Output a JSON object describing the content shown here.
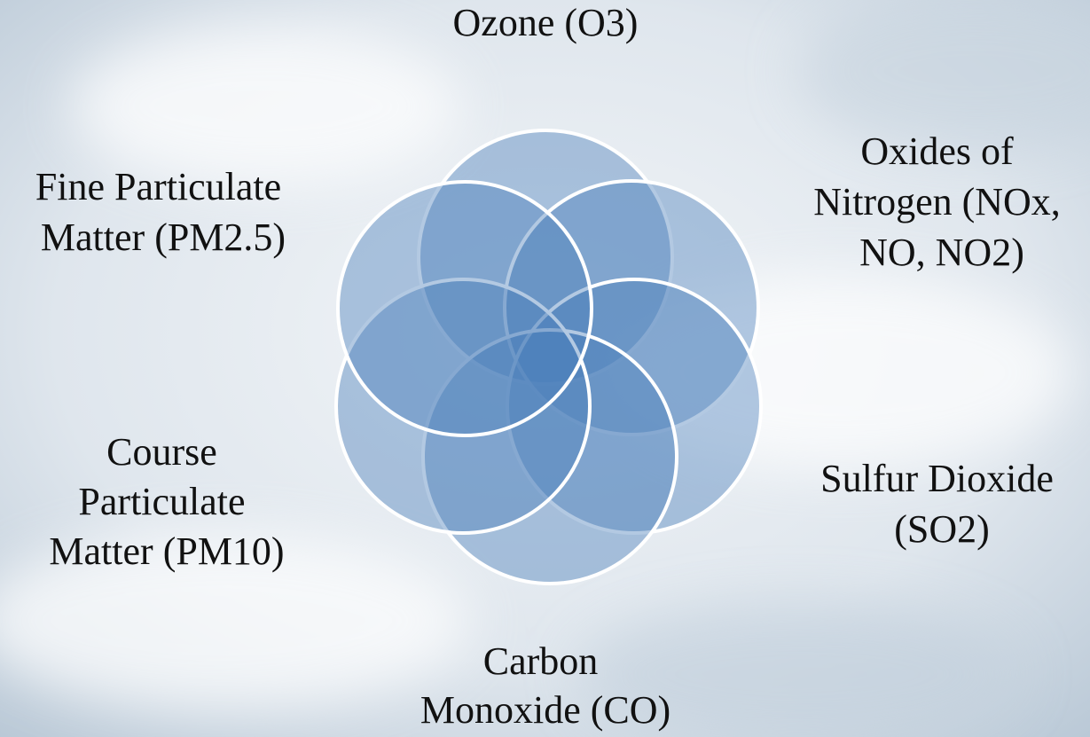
{
  "nodes": [
    {
      "lines": [
        "Ozone (O3)"
      ]
    },
    {
      "lines": [
        "Oxides of",
        "Nitrogen (NOx,",
        "NO, NO2)"
      ]
    },
    {
      "lines": [
        "Sulfur Dioxide",
        "(SO2)"
      ]
    },
    {
      "lines": [
        "Carbon",
        "Monoxide (CO)"
      ]
    },
    {
      "lines": [
        "Course",
        "Particulate",
        "Matter (PM10)"
      ]
    },
    {
      "lines": [
        "Fine Particulate",
        "Matter (PM2.5)"
      ]
    }
  ]
}
